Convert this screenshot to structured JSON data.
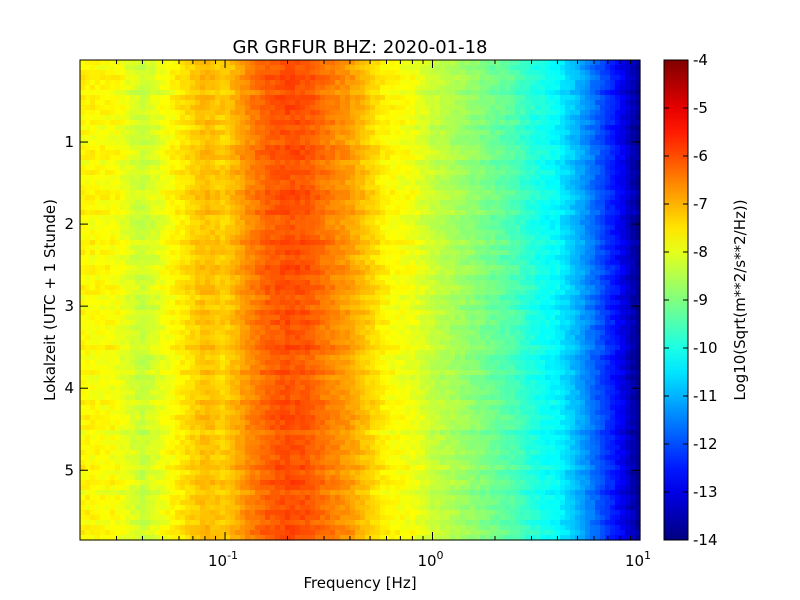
{
  "chart_data": {
    "type": "heatmap",
    "title": "GR GRFUR BHZ: 2020-01-18",
    "xlabel": "Frequency [Hz]",
    "ylabel": "Lokalzeit (UTC + 1 Stunde)",
    "x_scale": "log",
    "xlim": [
      0.02,
      10
    ],
    "x_ticks": [
      {
        "value": 0.1,
        "base": "10",
        "exp": "-1"
      },
      {
        "value": 1,
        "base": "10",
        "exp": "0"
      },
      {
        "value": 10,
        "base": "10",
        "exp": "1"
      }
    ],
    "ylim": [
      0,
      5.85
    ],
    "y_inverted": true,
    "y_ticks": [
      "1",
      "2",
      "3",
      "4",
      "5"
    ],
    "colorbar": {
      "label": "Log10(Sqrt(m**2/s**2/Hz))",
      "colormap": "jet",
      "vmin": -14,
      "vmax": -4,
      "ticks": [
        "-4",
        "-5",
        "-6",
        "-7",
        "-8",
        "-9",
        "-10",
        "-11",
        "-12",
        "-13",
        "-14"
      ]
    },
    "profile": {
      "frequency_hz": [
        0.02,
        0.03,
        0.04,
        0.06,
        0.08,
        0.1,
        0.13,
        0.16,
        0.2,
        0.25,
        0.3,
        0.4,
        0.5,
        0.6,
        0.8,
        1.0,
        1.3,
        1.6,
        2.0,
        2.5,
        3.0,
        4.0,
        5.0,
        6.0,
        7.0,
        8.0,
        9.0,
        10.0
      ],
      "psd": [
        -7.7,
        -7.8,
        -8.3,
        -7.6,
        -7.1,
        -7.3,
        -6.6,
        -6.2,
        -6.0,
        -6.1,
        -6.4,
        -6.8,
        -7.3,
        -7.7,
        -7.9,
        -8.3,
        -8.6,
        -8.9,
        -9.2,
        -9.5,
        -9.9,
        -10.3,
        -11.0,
        -11.7,
        -12.3,
        -12.8,
        -13.4,
        -13.9
      ]
    }
  }
}
